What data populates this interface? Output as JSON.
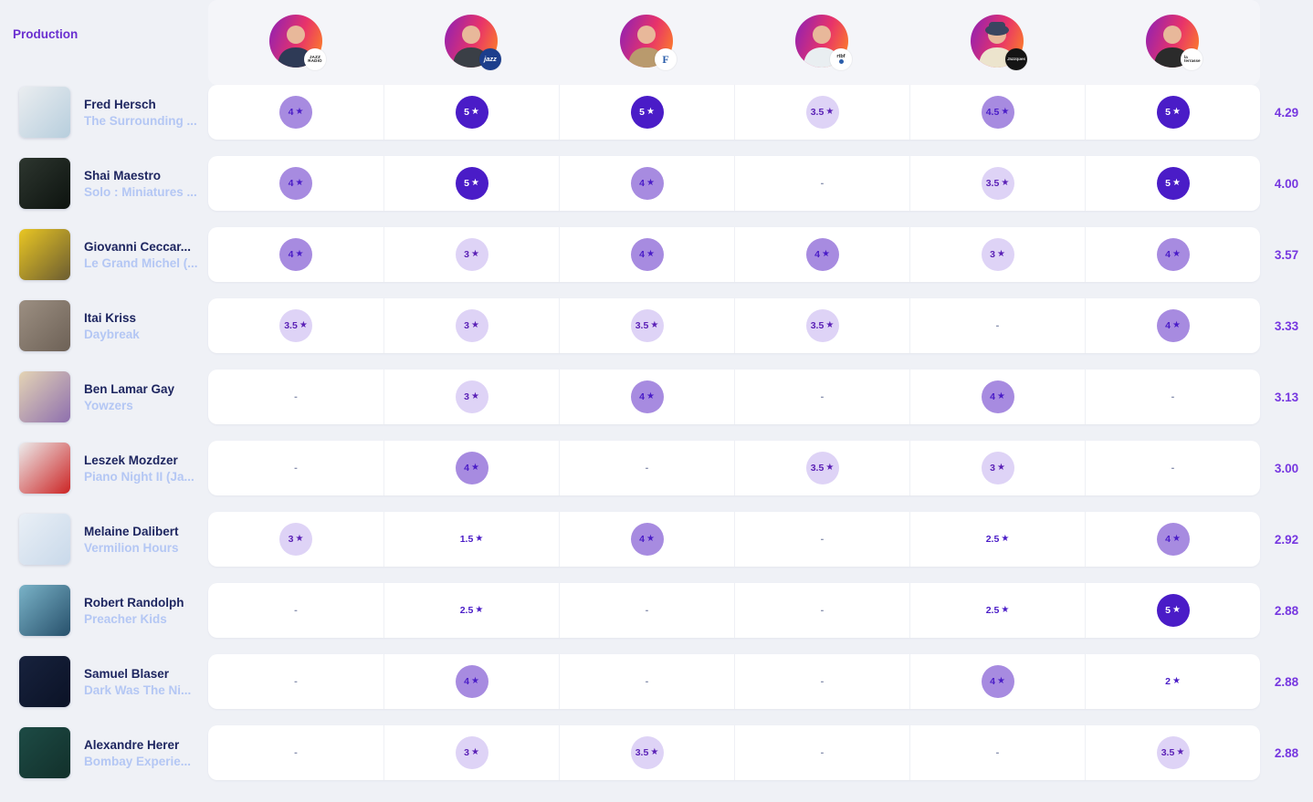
{
  "header": {
    "production_label": "Production"
  },
  "colors": {
    "page_bg": "#eff1f6",
    "header_bg": "#f4f5f9",
    "accent": "#6a2fd0",
    "artist": "#1e2660",
    "album": "#b4c7f4",
    "avg": "#7637e0",
    "tier5_bg": "#4a1cc7",
    "tier5_fg": "#ffffff",
    "tier4_bg": "#a78be0",
    "tier4_fg": "#4a1cc7",
    "tier3_bg": "#ded3f6",
    "tier3_fg": "#5b21b6",
    "low_fg": "#4a1cc7",
    "avatar_gradient_start": "#8b1fb8",
    "avatar_gradient_mid": "#e8336a",
    "avatar_gradient_end": "#ff8a1e"
  },
  "raters": [
    {
      "name": "jazz-radio",
      "badge_style": "jazzradio",
      "badge_lines": [
        "JAZZ",
        "RADIO"
      ],
      "shirt": "#2e3a56",
      "hat": false
    },
    {
      "name": "jazz-magazine",
      "badge_style": "jazzmag",
      "badge_lines": [
        "jazz"
      ],
      "shirt": "#3a3f46",
      "hat": false
    },
    {
      "name": "le-figaro",
      "badge_style": "figaro",
      "badge_lines": [
        "F"
      ],
      "shirt": "#b99a6d",
      "hat": false
    },
    {
      "name": "rtbf",
      "badge_style": "rtbf",
      "badge_lines": [
        "rtbf"
      ],
      "shirt": "#e9eef1",
      "hat": false
    },
    {
      "name": "jazzques",
      "badge_style": "jazzques",
      "badge_lines": [
        "Jazzques"
      ],
      "shirt": "#ece4cd",
      "hat": true
    },
    {
      "name": "la-terrasse",
      "badge_style": "terrasse",
      "badge_lines": [
        "la",
        "terrasse"
      ],
      "shirt": "#2b2b2b",
      "hat": false
    }
  ],
  "star_glyph": "★",
  "dash_glyph": "-",
  "rows": [
    {
      "artist": "Fred Hersch",
      "album": "The Surrounding ...",
      "cover": [
        "#eaedf0",
        "#b7cedd"
      ],
      "ratings": [
        4,
        5,
        5,
        3.5,
        4.5,
        5
      ],
      "avg": "4.29"
    },
    {
      "artist": "Shai Maestro",
      "album": "Solo : Miniatures ...",
      "cover": [
        "#2d362f",
        "#0d130f"
      ],
      "ratings": [
        4,
        5,
        4,
        null,
        3.5,
        5
      ],
      "avg": "4.00"
    },
    {
      "artist": "Giovanni Ceccar...",
      "album": "Le Grand Michel (...",
      "cover": [
        "#e9c623",
        "#6b5c31"
      ],
      "ratings": [
        4,
        3,
        4,
        4,
        3,
        4
      ],
      "avg": "3.57"
    },
    {
      "artist": "Itai Kriss",
      "album": "Daybreak",
      "cover": [
        "#9c8f82",
        "#6d6156"
      ],
      "ratings": [
        3.5,
        3,
        3.5,
        3.5,
        null,
        4
      ],
      "avg": "3.33"
    },
    {
      "artist": "Ben Lamar Gay",
      "album": "Yowzers",
      "cover": [
        "#e4d4b5",
        "#8e6fae"
      ],
      "ratings": [
        null,
        3,
        4,
        null,
        4,
        null
      ],
      "avg": "3.13"
    },
    {
      "artist": "Leszek Mozdzer",
      "album": "Piano Night II (Ja...",
      "cover": [
        "#ececec",
        "#cc2424"
      ],
      "ratings": [
        null,
        4,
        null,
        3.5,
        3,
        null
      ],
      "avg": "3.00"
    },
    {
      "artist": "Melaine Dalibert",
      "album": "Vermilion Hours",
      "cover": [
        "#e9eff6",
        "#c9d9ea"
      ],
      "ratings": [
        3,
        1.5,
        4,
        null,
        2.5,
        4
      ],
      "avg": "2.92"
    },
    {
      "artist": "Robert Randolph",
      "album": "Preacher Kids",
      "cover": [
        "#7ab3c8",
        "#27506b"
      ],
      "ratings": [
        null,
        2.5,
        null,
        null,
        2.5,
        5
      ],
      "avg": "2.88"
    },
    {
      "artist": "Samuel Blaser",
      "album": "Dark Was The Ni...",
      "cover": [
        "#17223d",
        "#0b1226"
      ],
      "ratings": [
        null,
        4,
        null,
        null,
        4,
        2
      ],
      "avg": "2.88"
    },
    {
      "artist": "Alexandre Herer",
      "album": "Bombay Experie...",
      "cover": [
        "#1d4b45",
        "#12302b"
      ],
      "ratings": [
        null,
        3,
        3.5,
        null,
        null,
        3.5
      ],
      "avg": "2.88"
    }
  ]
}
